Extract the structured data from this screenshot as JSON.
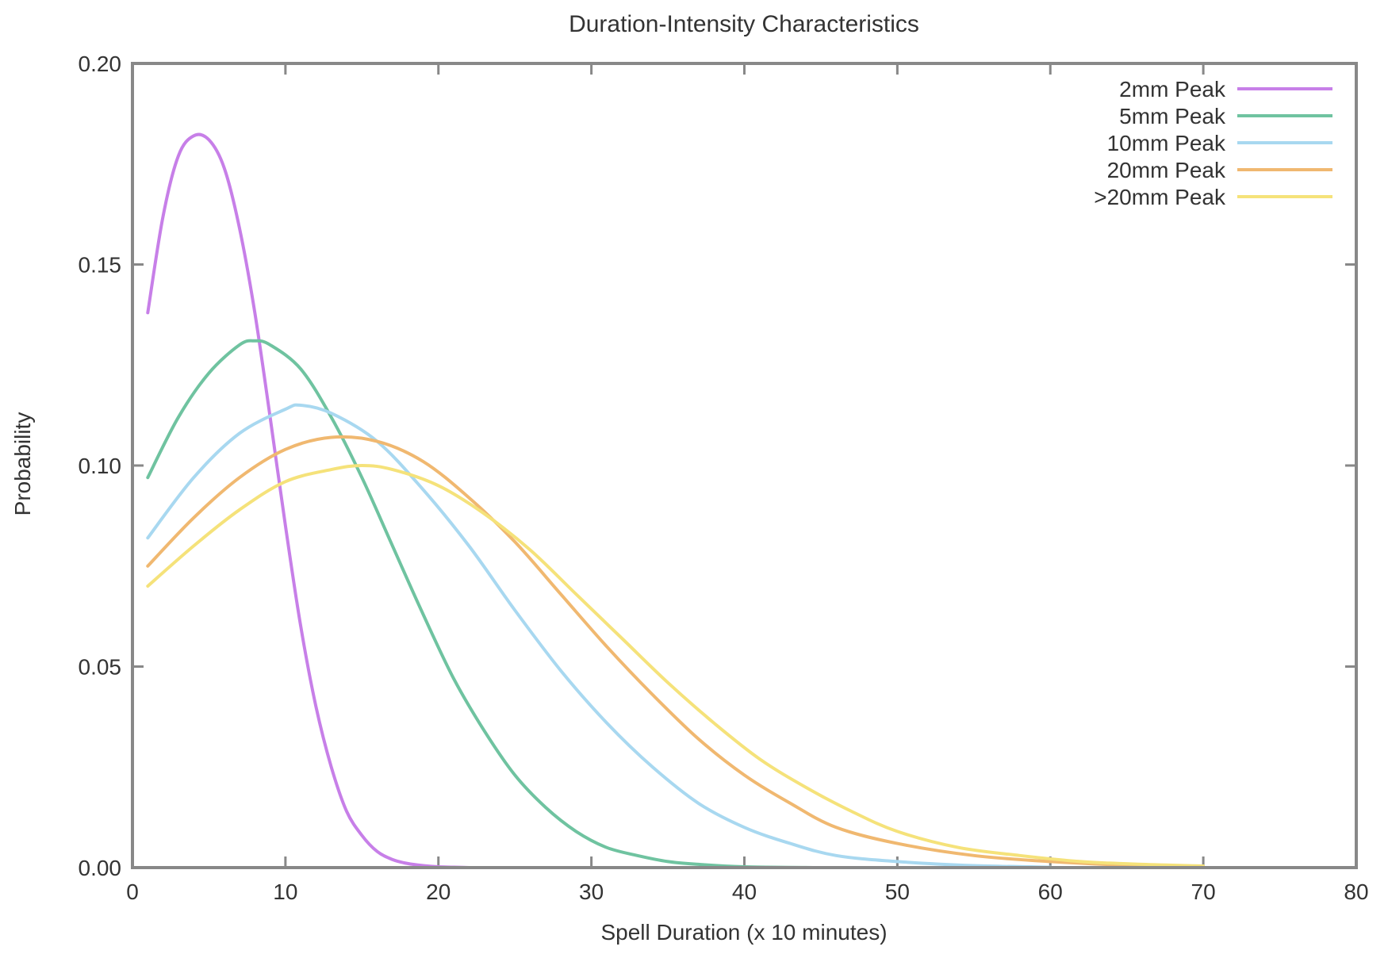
{
  "chart_data": {
    "type": "line",
    "title": "Duration-Intensity Characteristics",
    "xlabel": "Spell Duration (x 10 minutes)",
    "ylabel": "Probability",
    "xlim": [
      0,
      80
    ],
    "ylim": [
      0,
      0.2
    ],
    "x_ticks": [
      0,
      10,
      20,
      30,
      40,
      50,
      60,
      70,
      80
    ],
    "y_ticks": [
      "0.00",
      "0.05",
      "0.10",
      "0.15",
      "0.20"
    ],
    "legend_position": "top-right",
    "grid": false,
    "series": [
      {
        "name": "2mm Peak",
        "color": "#c77fe8",
        "x": [
          1,
          2,
          3,
          4,
          5,
          6,
          7,
          8,
          9,
          10,
          11,
          12,
          13,
          14,
          15,
          16,
          17,
          18,
          19,
          20,
          21,
          22,
          23,
          24,
          25
        ],
        "values": [
          0.138,
          0.162,
          0.177,
          0.182,
          0.181,
          0.174,
          0.159,
          0.138,
          0.112,
          0.085,
          0.06,
          0.04,
          0.025,
          0.014,
          0.008,
          0.004,
          0.002,
          0.001,
          0.0005,
          0.0002,
          0.0001,
          0.0,
          0.0,
          0.0,
          0.0
        ]
      },
      {
        "name": "5mm Peak",
        "color": "#6fc3a0",
        "x": [
          1,
          3,
          5,
          7,
          8,
          9,
          11,
          13,
          15,
          17,
          19,
          21,
          23,
          25,
          27,
          29,
          31,
          33,
          35,
          37,
          40,
          45
        ],
        "values": [
          0.097,
          0.112,
          0.123,
          0.13,
          0.131,
          0.13,
          0.124,
          0.112,
          0.097,
          0.08,
          0.063,
          0.047,
          0.034,
          0.023,
          0.015,
          0.009,
          0.005,
          0.003,
          0.0015,
          0.0008,
          0.0002,
          0.0
        ]
      },
      {
        "name": "10mm Peak",
        "color": "#a8d8f0",
        "x": [
          1,
          4,
          7,
          10,
          11,
          13,
          16,
          19,
          22,
          25,
          28,
          31,
          34,
          37,
          40,
          43,
          46,
          50,
          55,
          60
        ],
        "values": [
          0.082,
          0.097,
          0.108,
          0.114,
          0.115,
          0.113,
          0.106,
          0.094,
          0.08,
          0.064,
          0.049,
          0.036,
          0.025,
          0.016,
          0.01,
          0.006,
          0.003,
          0.0015,
          0.0005,
          0.0001
        ]
      },
      {
        "name": "20mm Peak",
        "color": "#f0b870",
        "x": [
          1,
          4,
          7,
          10,
          13,
          16,
          19,
          22,
          25,
          28,
          31,
          34,
          37,
          40,
          43,
          46,
          50,
          55,
          60,
          65,
          70
        ],
        "values": [
          0.075,
          0.087,
          0.097,
          0.104,
          0.107,
          0.106,
          0.101,
          0.092,
          0.081,
          0.068,
          0.055,
          0.043,
          0.032,
          0.023,
          0.016,
          0.01,
          0.006,
          0.003,
          0.0015,
          0.0006,
          0.0002
        ]
      },
      {
        "name": ">20mm Peak",
        "color": "#f5e27a",
        "x": [
          1,
          4,
          7,
          10,
          13,
          15,
          17,
          20,
          23,
          26,
          29,
          32,
          35,
          38,
          41,
          44,
          47,
          50,
          54,
          58,
          62,
          66,
          70
        ],
        "values": [
          0.07,
          0.08,
          0.089,
          0.096,
          0.099,
          0.1,
          0.099,
          0.095,
          0.088,
          0.079,
          0.068,
          0.057,
          0.046,
          0.036,
          0.027,
          0.02,
          0.014,
          0.009,
          0.005,
          0.003,
          0.0015,
          0.0008,
          0.0004
        ]
      }
    ]
  }
}
